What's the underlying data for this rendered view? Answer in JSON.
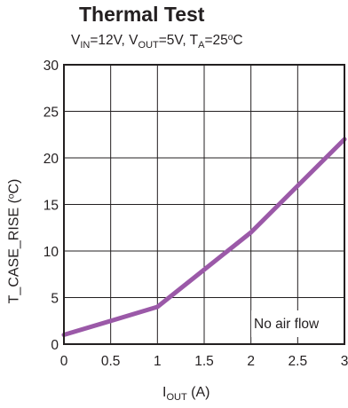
{
  "chart_data": {
    "type": "line",
    "title": "Thermal Test",
    "subtitle": {
      "vin_base": "V",
      "vin_sub": "IN",
      "vin_rest": "=12V, ",
      "vout_base": "V",
      "vout_sub": "OUT",
      "vout_rest": "=5V, ",
      "ta_base": "T",
      "ta_sub": "A",
      "ta_rest": "=25",
      "deg": "o",
      "unit": "C"
    },
    "xlabel": {
      "base": "I",
      "sub": "OUT",
      "rest": " (A)"
    },
    "ylabel": {
      "text": "T_CASE_RISE (",
      "deg": "o",
      "rest": "C)"
    },
    "xlim": [
      0,
      3
    ],
    "ylim": [
      0,
      30
    ],
    "x_ticks": [
      "0",
      "0.5",
      "1",
      "1.5",
      "2",
      "2.5",
      "3"
    ],
    "y_ticks": [
      "0",
      "5",
      "10",
      "15",
      "20",
      "25",
      "30"
    ],
    "grid": true,
    "annotation": "No air flow",
    "series": [
      {
        "color": "#9b59a8",
        "x": [
          0,
          0.5,
          1,
          1.5,
          2,
          2.5,
          3
        ],
        "y": [
          1,
          2.5,
          4,
          8,
          12,
          17,
          22
        ]
      }
    ]
  }
}
